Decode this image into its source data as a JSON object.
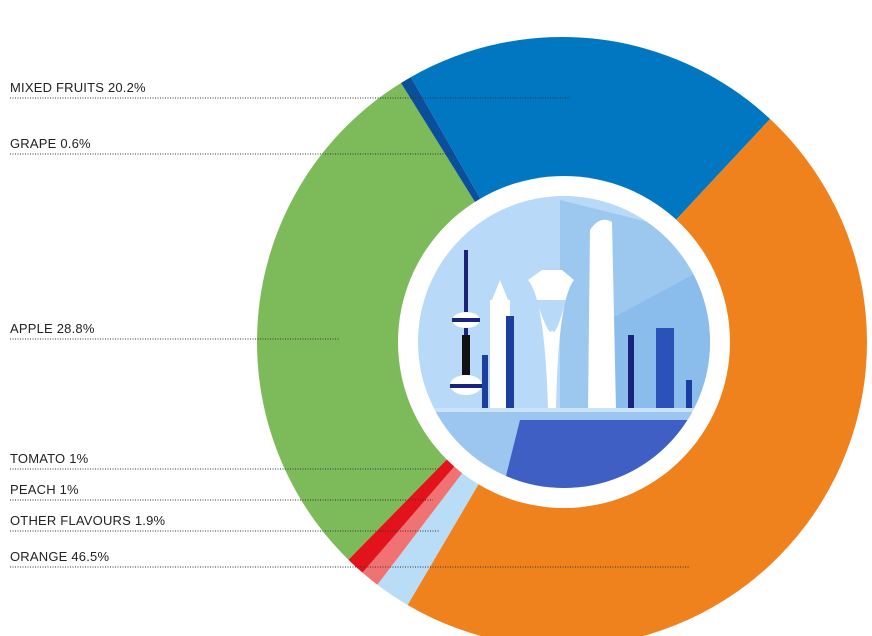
{
  "chart_data": {
    "type": "donut",
    "categories": [
      "MIXED FRUITS",
      "ORANGE",
      "OTHER FLAVOURS",
      "PEACH",
      "TOMATO",
      "APPLE",
      "GRAPE"
    ],
    "values": [
      20.2,
      46.5,
      1.9,
      1,
      1,
      28.8,
      0.6
    ],
    "value_labels": [
      "20.2%",
      "46.5%",
      "1.9%",
      "1%",
      "1%",
      "28.8%",
      "0.6%"
    ],
    "colors": [
      "#0077c0",
      "#f0821e",
      "#b9ddf6",
      "#f07272",
      "#e3131b",
      "#7dbb5a",
      "#0b4f9b"
    ]
  }
}
